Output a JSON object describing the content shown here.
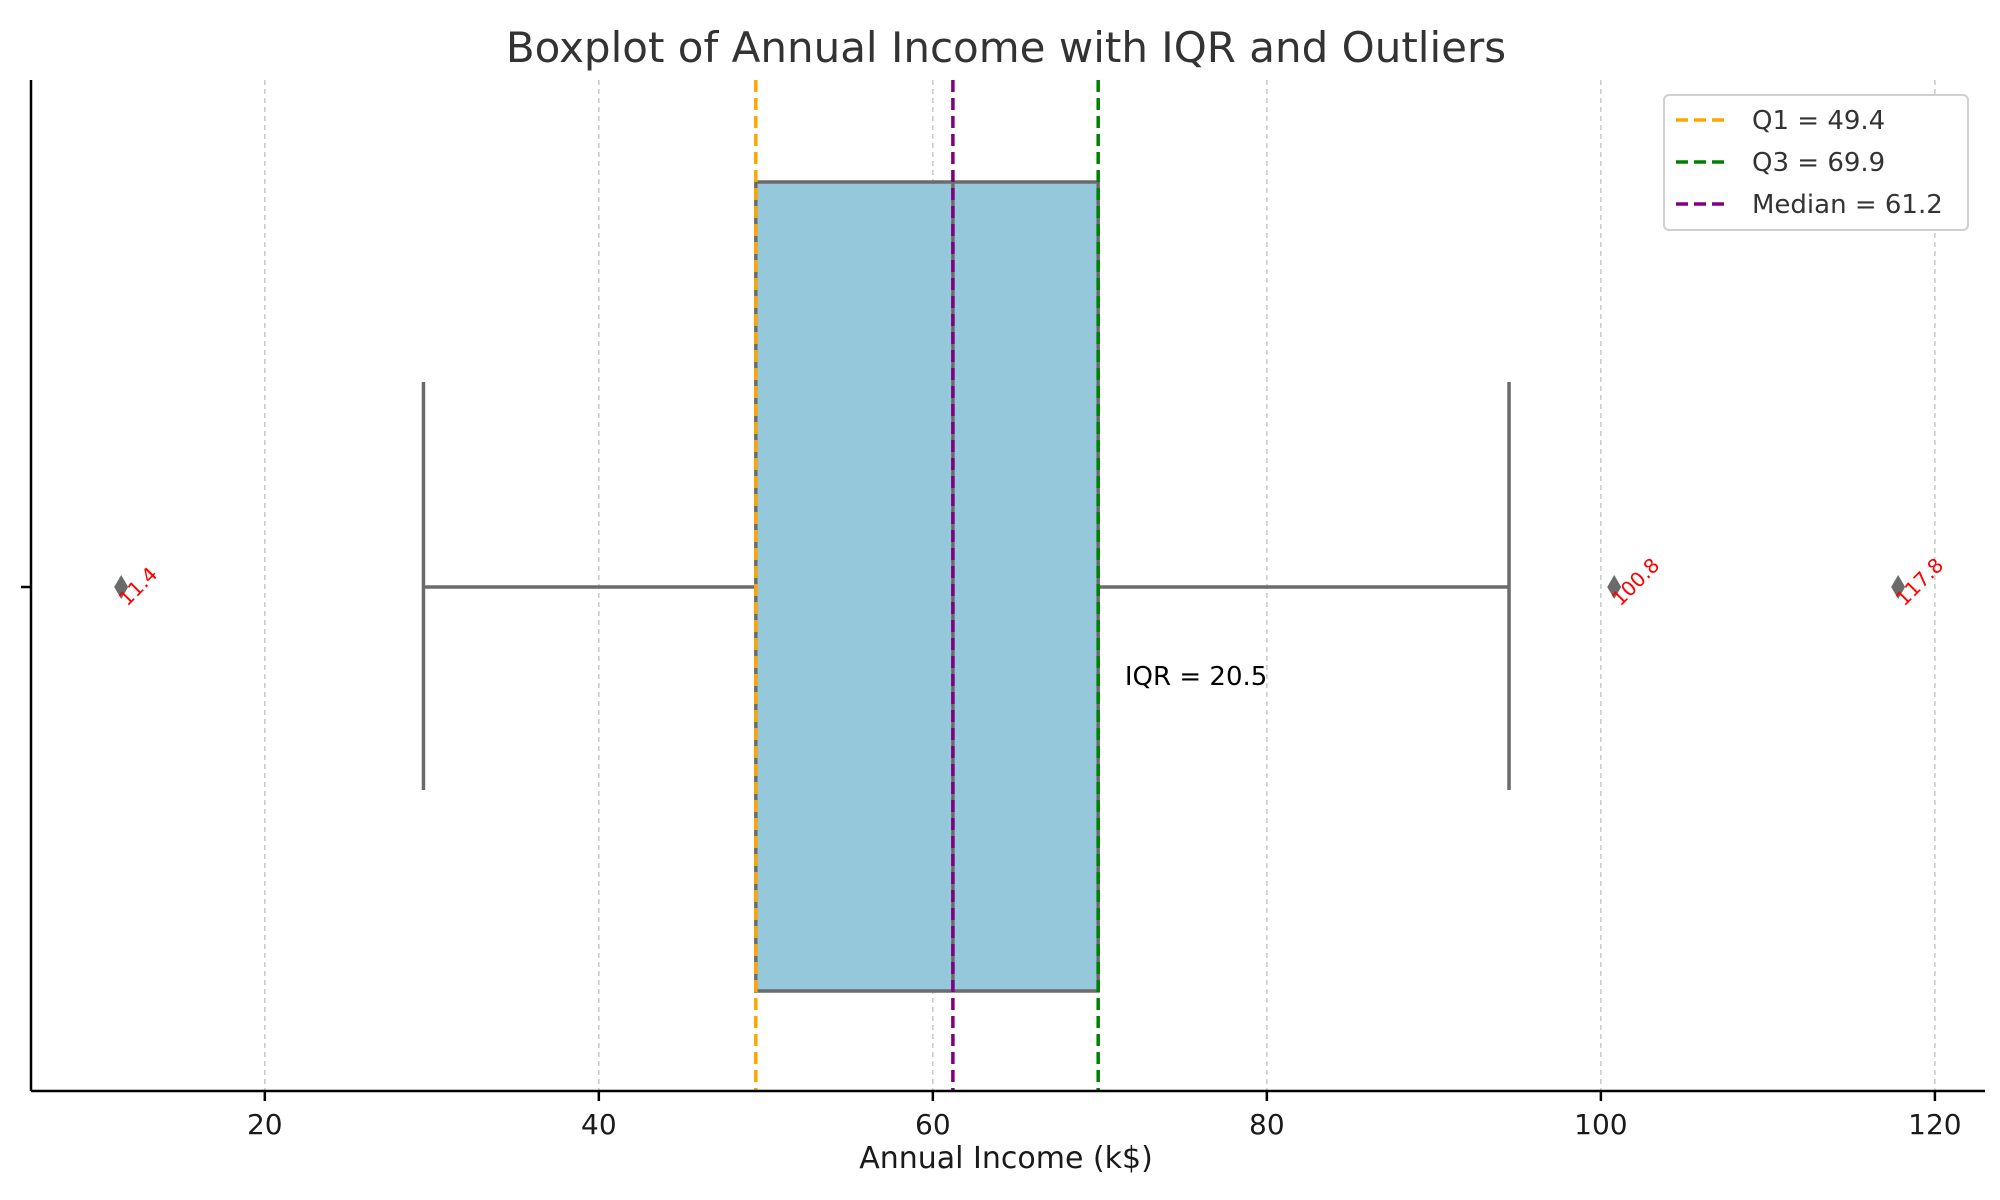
{
  "chart_data": {
    "type": "boxplot",
    "title": "Boxplot of Annual Income with IQR and Outliers",
    "xlabel": "Annual Income (k$)",
    "ylabel": "",
    "xlim": [
      6,
      123
    ],
    "xticks": [
      20,
      40,
      60,
      80,
      100,
      120
    ],
    "grid": "vertical dashed",
    "box": {
      "whisker_low": 29.5,
      "q1": 49.4,
      "median": 61.2,
      "q3": 69.9,
      "whisker_high": 94.5,
      "fill_color": "#96c8dc",
      "line_color": "#6b6b6b"
    },
    "outliers": [
      {
        "value": 11.4,
        "label": "11.4"
      },
      {
        "value": 100.8,
        "label": "100.8"
      },
      {
        "value": 117.8,
        "label": "117.8"
      }
    ],
    "outlier_marker_color": "#6b6b6b",
    "outlier_label_color": "#ff0000",
    "reference_lines": [
      {
        "name": "Q1 = 49.4",
        "value": 49.4,
        "color": "#ffa500"
      },
      {
        "name": "Q3 = 69.9",
        "value": 69.9,
        "color": "#008000"
      },
      {
        "name": "Median = 61.2",
        "value": 61.2,
        "color": "#800080"
      }
    ],
    "annotation": {
      "text": "IQR = 20.5",
      "x": 71.5
    },
    "legend_position": "top-right"
  }
}
